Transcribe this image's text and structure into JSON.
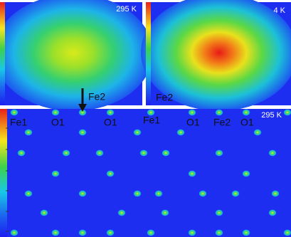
{
  "panels": [
    {
      "label": "295 K"
    },
    {
      "label": "4 K",
      "site": "Fe2"
    },
    {
      "label": "295 K",
      "sites": [
        "Fe1",
        "O1",
        "O1",
        "Fe1",
        "O1",
        "Fe2",
        "O1"
      ]
    }
  ],
  "arrow_label": "Fe2"
}
